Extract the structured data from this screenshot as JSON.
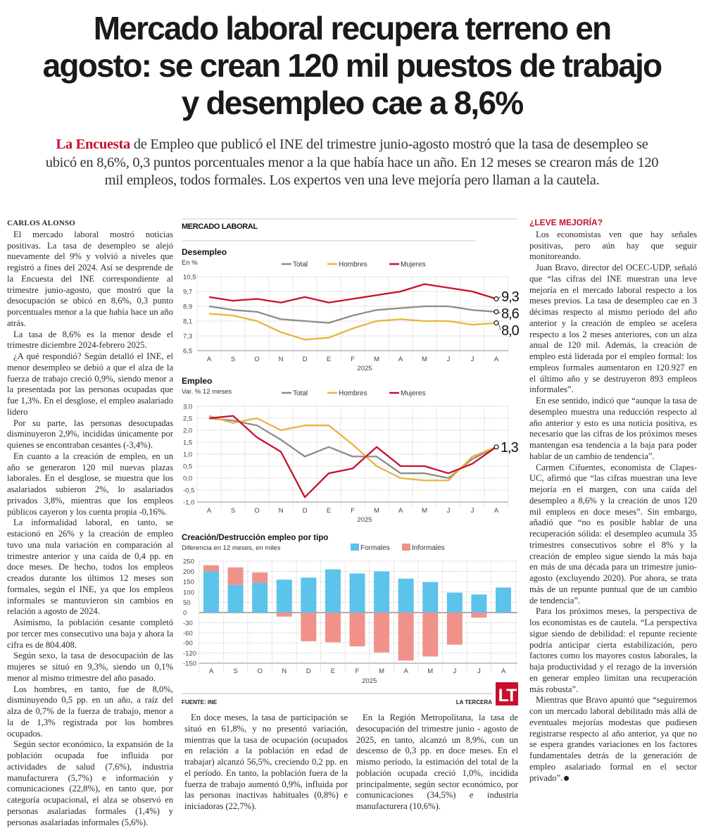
{
  "headline": {
    "lines": [
      "Mercado laboral recupera terreno en",
      "agosto: se crean 120 mil puestos de trabajo",
      "y desempleo cae a 8,6%"
    ]
  },
  "deck": {
    "lead": "La Encuesta",
    "lines": [
      " de Empleo que publicó el INE del trimestre junio-agosto mostró que la tasa de desempleo se",
      "ubicó en 8,6%, 0,3 puntos porcentuales menor a la que había hace un año. En 12 meses se crearon más de 120",
      "mil empleos, todos formales. Los expertos ven una leve mejoría pero llaman a la cautela."
    ]
  },
  "byline": "CARLOS ALONSO",
  "left_column": [
    "El mercado laboral mostró noticias positivas. La tasa de desempleo se alejó nuevamente del 9% y volvió a niveles que registró a fines del 2024. Así se desprende de la Encuesta del INE correspondiente al trimestre junio-agosto, que mostró que la desocupación se ubicó en 8,6%, 0,3 punto porcentuales menor a la que había hace un año atrás.",
    "La tasa de 8,6% es la menor desde el trimestre diciembre 2024-febrero 2025.",
    "¿A qué respondió? Según detalló el INE, el menor desempleo se debió a que el alza de la fuerza de trabajo creció 0,9%, siendo menor a la presentada por las personas ocupadas que fue 1,3%. En el desglose, el empleo asalariado lidero",
    "Por su parte, las personas desocupadas disminuyeron 2,9%, incididas únicamente por quienes se encontraban cesantes (-3,4%).",
    "En cuanto a la creación de empleo, en un año se generaron 120 mil nuevas plazas laborales. En el desglose, se muestra que los asalariados subieron 2%, lo asalariados privados 3,8%, mientras que los empleos públicos cayeron y los cuenta propia -0,16%.",
    "La informalidad laboral, en tanto, se estacionó en 26% y la creación de empleo tuvo una nula variación en comparación al trimestre anterior y una caída de 0,4 pp. en doce meses. De hecho, todos los empleos creados durante los últimos 12 meses son formales, según el INE, ya que los empleos informales se mantuvieron sin cambios en relación a agosto de 2024.",
    "Asimismo, la población cesante completó por tercer mes consecutivo una baja y ahora la cifra es de 804.408.",
    "Según sexo, la tasa de desocupación de las mujeres se situó en 9,3%, siendo un 0,1% menor al mismo trimestre del año pasado.",
    "Los hombres, en tanto, fue de 8,0%, disminuyendo 0,5 pp. en un año, a raíz del alza de 0,7% de la fuerza de trabajo, menor a la de 1,3% registrada por los hombres ocupados.",
    "Según sector económico, la expansión de la población ocupada fue influida por actividades de salud (7,6%), industria manufacturera (5,7%) e información y comunicaciones (22,8%), en tanto que, por categoría ocupacional, el alza se observó en personas asalariadas formales (1,4%) y personas asalariadas informales (5,6%)."
  ],
  "middle_column_1": [
    "En doce meses, la tasa de participación se situó en 61,8%, y no presentó variación, mientras que la tasa de ocupación (ocupados en relación a la población en edad de trabajar) alcanzó 56,5%, creciendo 0,2 pp. en el período. En tanto, la población fuera de la fuerza de trabajo aumentó 0,9%, influida por las personas inactivas habituales (0,8%) e iniciadoras (22,7%)."
  ],
  "middle_column_2": [
    "En la Región Metropolitana, la tasa de desocupación del trimestre junio - agosto de 2025, en tanto, alcanzó un 8,9%, con un descenso de 0,3 pp. en doce meses. En el mismo período, la estimación del total de la población ocupada creció 1,0%, incidida principalmente, según sector económico, por comunicaciones (34,5%) e industria manufacturera (10,6%)."
  ],
  "right_column": {
    "subhead": "¿LEVE MEJORÍA?",
    "paragraphs": [
      "Los economistas ven que hay señales positivas, pero aún hay que seguir monitoreando.",
      "Juan Bravo, director del OCEC-UDP, señaló que “las cifras del INE muestran una leve mejoría en el mercado laboral respecto a los meses previos. La tasa de desempleo cae en 3 décimas respecto al mismo periodo del año anterior y la creación de empleo se acelera respecto a los 2 meses anteriores, con un alza anual de 120 mil. Además, la creación de empleo está liderada por el empleo formal: los empleos formales aumentaron en 120.927 en el último año y se destruyeron 893 empleos informales”.",
      "En ese sentido, indicó que “aunque la tasa de desempleo muestra una reducción respecto al año anterior y esto es una noticia positiva, es necesario que las cifras de los próximos meses mantengan esa tendencia a la baja para poder hablar de un cambio de tendencia”.",
      "Carmen Cifuentes, economista de Clapes-UC, afirmó que “las cifras muestran una leve mejoría en el margen, con una caída del desempleo a 8,6% y la creación de unos 120 mil empleos en doce meses”. Sin embargo, añadió que “no es posible hablar de una recuperación sólida: el desempleo acumula 35 trimestres consecutivos sobre el 8% y la creación de empleo sigue siendo la más baja en más de una década para un trimestre junio-agosto (excluyendo 2020). Por ahora, se trata más de un repunte puntual que de un cambio de tendencia”.",
      "Para los próximos meses, la perspectiva de los economistas es de cautela. “La perspectiva sigue siendo de debilidad: el repunte reciente podría anticipar cierta estabilización, pero factores como los mayores costos laborales, la baja productividad y el rezago de la inversión en generar empleo limitan una recuperación más robusta”.",
      "Mientras que Bravo apuntó que “seguiremos con un mercado laboral debilitado más allá de eventuales mejorías modestas que pudiesen registrarse respecto al año anterior, ya que no se espera grandes variaciones en los factores fundamentales detrás de la generación de empleo asalariado formal en el sector privado”."
    ],
    "end_mark_icon": "end-of-article-dot"
  },
  "graphic": {
    "title": "MERCADO LABORAL",
    "source": "FUENTE: INE",
    "credit": "LA TERCERA",
    "logo_text": "LT",
    "logo_color": "#c8102e"
  },
  "colors": {
    "total": "#8c8c8c",
    "hombres": "#e9b43c",
    "mujeres": "#c8102e",
    "formales": "#5cc3ea",
    "informales": "#f0928a",
    "accent": "#c8102e"
  },
  "chart_data": [
    {
      "type": "line",
      "title": "Desempleo",
      "ylabel": "En %",
      "xlabel": "2025",
      "categories": [
        "A",
        "S",
        "O",
        "N",
        "D",
        "E",
        "F",
        "M",
        "A",
        "M",
        "J",
        "J",
        "A"
      ],
      "yticks": [
        "6,5",
        "7,3",
        "8,1",
        "8,9",
        "9,7",
        "10,5"
      ],
      "ylim": [
        6.5,
        10.5
      ],
      "grid": true,
      "legend": "top",
      "series": [
        {
          "name": "Total",
          "values": [
            8.9,
            8.7,
            8.6,
            8.2,
            8.1,
            8.0,
            8.4,
            8.7,
            8.8,
            8.9,
            8.9,
            8.7,
            8.6
          ],
          "end_label": "8,6"
        },
        {
          "name": "Hombres",
          "values": [
            8.5,
            8.4,
            8.1,
            7.5,
            7.1,
            7.2,
            7.7,
            8.1,
            8.2,
            8.1,
            8.1,
            7.9,
            8.0
          ],
          "end_label": "8,0"
        },
        {
          "name": "Mujeres",
          "values": [
            9.4,
            9.2,
            9.3,
            9.1,
            9.4,
            9.1,
            9.3,
            9.5,
            9.7,
            10.1,
            9.9,
            9.7,
            9.3
          ],
          "end_label": "9,3"
        }
      ]
    },
    {
      "type": "line",
      "title": "Empleo",
      "ylabel": "Var. % 12 meses",
      "xlabel": "2025",
      "categories": [
        "A",
        "S",
        "O",
        "N",
        "D",
        "E",
        "F",
        "M",
        "A",
        "M",
        "J",
        "J",
        "A"
      ],
      "yticks": [
        "-1,0",
        "-0,5",
        "0,0",
        "0,5",
        "1,0",
        "1,5",
        "2,0",
        "2,5",
        "3,0"
      ],
      "ylim": [
        -1.0,
        3.0
      ],
      "grid": true,
      "legend": "top",
      "end_label": "1,3",
      "series": [
        {
          "name": "Total",
          "values": [
            2.5,
            2.4,
            2.2,
            1.6,
            0.9,
            1.3,
            0.9,
            0.9,
            0.2,
            0.2,
            0.0,
            0.8,
            1.3
          ]
        },
        {
          "name": "Hombres",
          "values": [
            2.6,
            2.3,
            2.5,
            2.0,
            2.2,
            2.2,
            1.4,
            0.5,
            0.0,
            -0.1,
            -0.1,
            0.9,
            1.3
          ]
        },
        {
          "name": "Mujeres",
          "values": [
            2.5,
            2.6,
            1.7,
            1.1,
            -0.8,
            0.2,
            0.4,
            1.3,
            0.5,
            0.5,
            0.2,
            0.6,
            1.3
          ]
        }
      ]
    },
    {
      "type": "bar",
      "stacked": true,
      "title": "Creación/Destrucción empleo por tipo",
      "ylabel": "Diferencia en 12 meses, en miles",
      "xlabel": "2025",
      "categories": [
        "A",
        "S",
        "O",
        "N",
        "D",
        "E",
        "F",
        "M",
        "A",
        "M",
        "J",
        "J",
        "A"
      ],
      "yticks": [
        "250",
        "200",
        "150",
        "100",
        "50",
        "0",
        "-30",
        "-60",
        "-90",
        "-120",
        "-150"
      ],
      "ylim": [
        -150,
        250
      ],
      "grid": true,
      "legend": "top",
      "series": [
        {
          "name": "Formales",
          "values": [
            200,
            135,
            145,
            160,
            170,
            210,
            190,
            200,
            165,
            148,
            97,
            88,
            122
          ]
        },
        {
          "name": "Informales",
          "values": [
            30,
            85,
            50,
            -12,
            -85,
            -88,
            -100,
            -118,
            -142,
            -130,
            -95,
            -15,
            0
          ]
        }
      ]
    }
  ]
}
